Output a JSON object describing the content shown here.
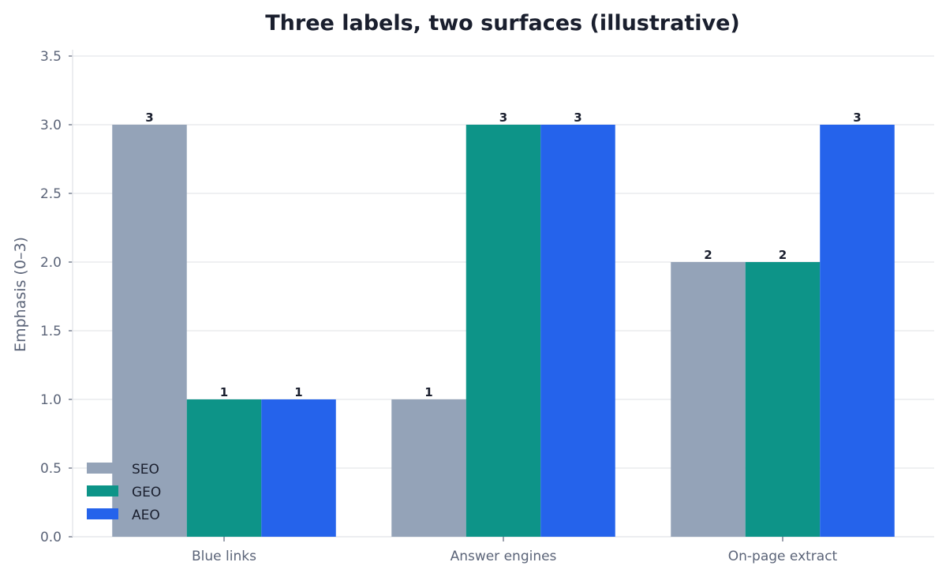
{
  "chart_data": {
    "type": "bar",
    "title": "Three labels, two surfaces (illustrative)",
    "xlabel": "",
    "ylabel": "Emphasis (0–3)",
    "categories": [
      "Blue links",
      "Answer engines",
      "On-page extract"
    ],
    "series": [
      {
        "name": "SEO",
        "color": "#94a3b8",
        "values": [
          3,
          1,
          2
        ]
      },
      {
        "name": "GEO",
        "color": "#0d9488",
        "values": [
          1,
          3,
          2
        ]
      },
      {
        "name": "AEO",
        "color": "#2563eb",
        "values": [
          1,
          3,
          3
        ]
      }
    ],
    "ylim": [
      0,
      3.5
    ],
    "yticks": [
      "0.0",
      "0.5",
      "1.0",
      "1.5",
      "2.0",
      "2.5",
      "3.0",
      "3.5"
    ],
    "grid": true,
    "legend_position": "bottom-left",
    "data_labels": true
  }
}
